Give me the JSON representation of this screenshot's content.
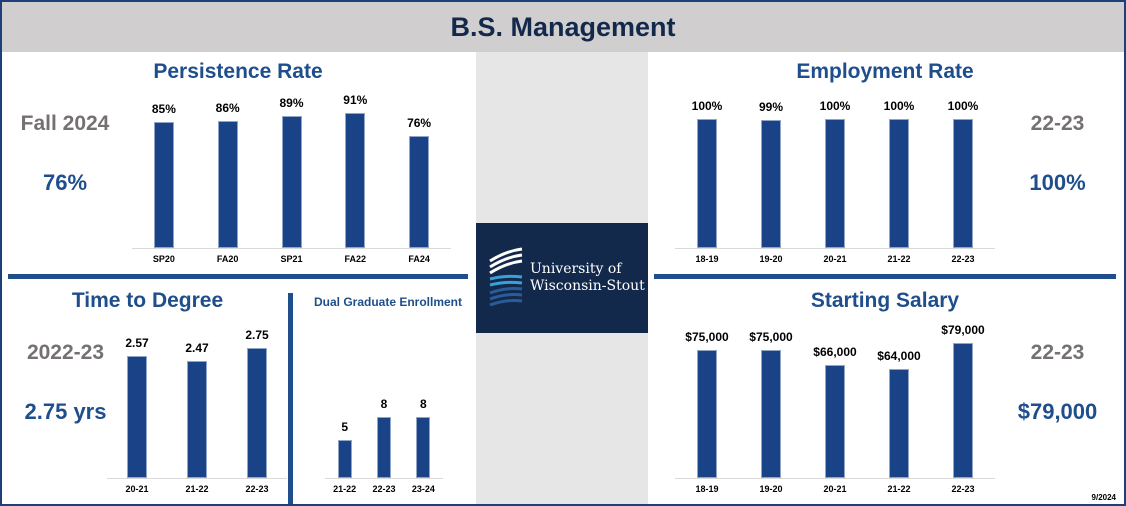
{
  "header": {
    "title": "B.S. Management"
  },
  "logo": {
    "line1": "University of",
    "line2": "Wisconsin-Stout"
  },
  "persistence": {
    "title": "Persistence Rate",
    "kpi_label": "Fall 2024",
    "kpi_value": "76%"
  },
  "employment": {
    "title": "Employment Rate",
    "kpi_label": "22-23",
    "kpi_value": "100%"
  },
  "time_to_degree": {
    "title": "Time to Degree",
    "kpi_label": "2022-23",
    "kpi_value": "2.75 yrs"
  },
  "dual": {
    "title": "Dual Graduate Enrollment"
  },
  "salary": {
    "title": "Starting Salary",
    "kpi_label": "22-23",
    "kpi_value": "$79,000"
  },
  "footer": {
    "date": "9/2024"
  },
  "chart_data": [
    {
      "id": "persistence",
      "type": "bar",
      "title": "Persistence Rate",
      "categories": [
        "SP20",
        "FA20",
        "SP21",
        "FA22",
        "FA24"
      ],
      "values": [
        85,
        86,
        89,
        91,
        76
      ],
      "labels": [
        "85%",
        "86%",
        "89%",
        "91%",
        "76%"
      ],
      "ylim": [
        0,
        100
      ]
    },
    {
      "id": "employment",
      "type": "bar",
      "title": "Employment Rate",
      "categories": [
        "18-19",
        "19-20",
        "20-21",
        "21-22",
        "22-23"
      ],
      "values": [
        100,
        99,
        100,
        100,
        100
      ],
      "labels": [
        "100%",
        "99%",
        "100%",
        "100%",
        "100%"
      ],
      "ylim": [
        0,
        100
      ]
    },
    {
      "id": "time_to_degree",
      "type": "bar",
      "title": "Time to Degree",
      "categories": [
        "20-21",
        "21-22",
        "22-23"
      ],
      "values": [
        2.57,
        2.47,
        2.75
      ],
      "labels": [
        "2.57",
        "2.47",
        "2.75"
      ]
    },
    {
      "id": "dual",
      "type": "bar",
      "title": "Dual Graduate Enrollment",
      "categories": [
        "21-22",
        "22-23",
        "23-24"
      ],
      "values": [
        5,
        8,
        8
      ],
      "labels": [
        "5",
        "8",
        "8"
      ]
    },
    {
      "id": "salary",
      "type": "bar",
      "title": "Starting Salary",
      "categories": [
        "18-19",
        "19-20",
        "20-21",
        "21-22",
        "22-23"
      ],
      "values": [
        75000,
        75000,
        66000,
        64000,
        79000
      ],
      "labels": [
        "$75,000",
        "$75,000",
        "$66,000",
        "$64,000",
        "$79,000"
      ]
    }
  ]
}
